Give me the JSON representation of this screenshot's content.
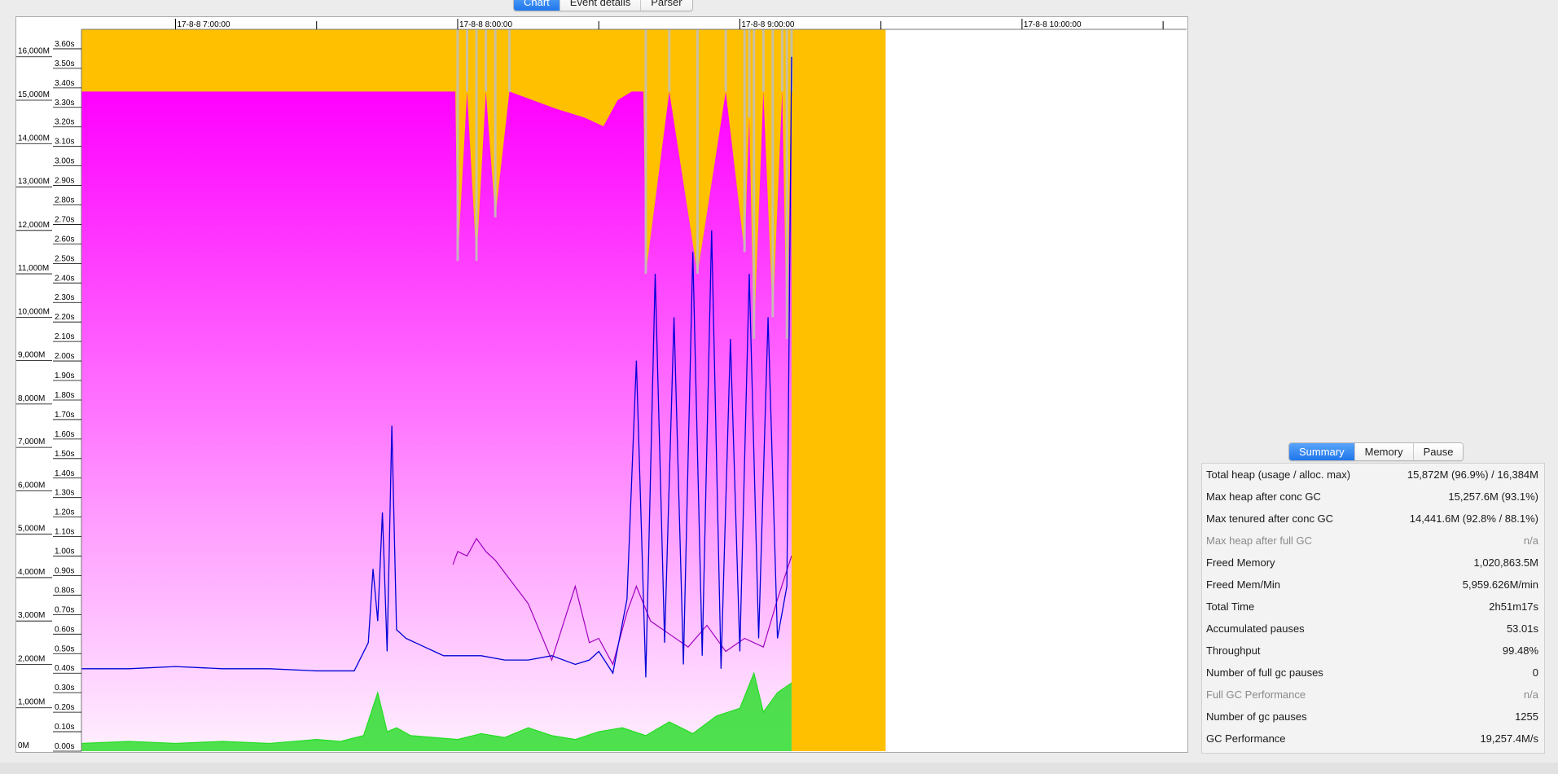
{
  "tabs": {
    "chart": "Chart",
    "event_details": "Event details",
    "parser": "Parser"
  },
  "summary_tabs": {
    "summary": "Summary",
    "memory": "Memory",
    "pause": "Pause"
  },
  "summary": [
    {
      "label": "Total heap (usage / alloc. max)",
      "value": "15,872M (96.9%) / 16,384M",
      "muted": false
    },
    {
      "label": "Max heap after conc GC",
      "value": "15,257.6M (93.1%)",
      "muted": false
    },
    {
      "label": "Max tenured after conc GC",
      "value": "14,441.6M (92.8% / 88.1%)",
      "muted": false
    },
    {
      "label": "Max heap after full GC",
      "value": "n/a",
      "muted": true
    },
    {
      "label": "Freed Memory",
      "value": "1,020,863.5M",
      "muted": false
    },
    {
      "label": "Freed Mem/Min",
      "value": "5,959.626M/min",
      "muted": false
    },
    {
      "label": "Total Time",
      "value": "2h51m17s",
      "muted": false
    },
    {
      "label": "Accumulated pauses",
      "value": "53.01s",
      "muted": false
    },
    {
      "label": "Throughput",
      "value": "99.48%",
      "muted": false
    },
    {
      "label": "Number of full gc pauses",
      "value": "0",
      "muted": false
    },
    {
      "label": "Full GC Performance",
      "value": "n/a",
      "muted": true
    },
    {
      "label": "Number of gc pauses",
      "value": "1255",
      "muted": false
    },
    {
      "label": "GC Performance",
      "value": "19,257.4M/s",
      "muted": false
    }
  ],
  "chart_data": {
    "type": "area",
    "x_ticks": [
      "17-8-8 7:00:00",
      "17-8-8 8:00:00",
      "17-8-8 9:00:00",
      "17-8-8 10:00:00"
    ],
    "x_range": [
      "17-8-8 6:40:00",
      "17-8-8 10:35:00"
    ],
    "data_end": "17-8-8 9:31:00",
    "memory_axis": {
      "unit": "M",
      "range": [
        0,
        16384
      ],
      "tick_labels": [
        "0M",
        "1,000M",
        "2,000M",
        "3,000M",
        "4,000M",
        "5,000M",
        "6,000M",
        "7,000M",
        "8,000M",
        "9,000M",
        "10,000M",
        "11,000M",
        "12,000M",
        "13,000M",
        "14,000M",
        "15,000M",
        "16,000M"
      ]
    },
    "pause_axis": {
      "unit": "s",
      "range": [
        0,
        3.7
      ],
      "tick_labels": [
        "0.00s",
        "0.10s",
        "0.20s",
        "0.30s",
        "0.40s",
        "0.50s",
        "0.60s",
        "0.70s",
        "0.80s",
        "0.90s",
        "1.00s",
        "1.10s",
        "1.20s",
        "1.30s",
        "1.40s",
        "1.50s",
        "1.60s",
        "1.70s",
        "1.80s",
        "1.90s",
        "2.00s",
        "2.10s",
        "2.20s",
        "2.30s",
        "2.40s",
        "2.50s",
        "2.60s",
        "2.70s",
        "2.80s",
        "2.90s",
        "3.00s",
        "3.10s",
        "3.20s",
        "3.30s",
        "3.40s",
        "3.50s",
        "3.60s"
      ]
    },
    "colors": {
      "total_heap": "#ffc000",
      "tenured_top": "#ff00ff",
      "tenured_bottom": "#fff0ff",
      "gc_band": "#c0c0c0",
      "used_heap": "#0000d8",
      "used_heap_after_gc": "#a000c0",
      "pauses": "#22dd22"
    },
    "series": [
      {
        "key": "tenured_heap",
        "x": [
          0,
          79.5,
          80,
          82,
          84,
          86,
          88,
          91,
          96,
          101,
          107,
          111,
          114,
          117,
          119.5,
          120,
          125,
          131,
          137,
          141,
          142,
          143,
          145,
          147,
          149,
          150,
          151
        ],
        "y": [
          15200,
          15200,
          11300,
          15200,
          11300,
          15200,
          12300,
          15200,
          15000,
          14800,
          14600,
          14400,
          15000,
          15200,
          15200,
          11000,
          15200,
          11000,
          15200,
          11500,
          14600,
          9500,
          15200,
          10000,
          15200,
          9500,
          15200
        ]
      },
      {
        "key": "used_heap",
        "x": [
          0,
          10,
          20,
          30,
          40,
          50,
          58,
          61,
          62,
          63,
          64,
          65,
          66,
          67,
          69,
          71,
          73,
          75,
          77,
          80,
          85,
          90,
          95,
          100,
          105,
          108,
          110,
          113,
          116,
          118,
          120,
          122,
          124,
          126,
          128,
          130,
          132,
          134,
          136,
          138,
          140,
          142,
          144,
          146,
          148,
          150,
          151
        ],
        "y": [
          1900,
          1900,
          1950,
          1900,
          1900,
          1850,
          1850,
          2500,
          4200,
          3000,
          5500,
          2300,
          7500,
          2800,
          2600,
          2500,
          2400,
          2300,
          2200,
          2200,
          2200,
          2100,
          2100,
          2200,
          2000,
          2100,
          2300,
          1800,
          3500,
          9000,
          1700,
          11000,
          2500,
          10000,
          2000,
          11500,
          2200,
          12000,
          1900,
          9500,
          2300,
          11000,
          2600,
          10000,
          2600,
          3800,
          16000
        ]
      },
      {
        "key": "used_heap_after_gc",
        "x": [
          79,
          80,
          82,
          84,
          86,
          88,
          95,
          100,
          105,
          108,
          110,
          113,
          116,
          118,
          121,
          125,
          129,
          133,
          137,
          141,
          145,
          148,
          151
        ],
        "y": [
          4300,
          4600,
          4500,
          4900,
          4600,
          4400,
          3400,
          2100,
          3800,
          2500,
          2600,
          2000,
          3200,
          3800,
          3000,
          2700,
          2400,
          2900,
          2300,
          2600,
          2400,
          3500,
          4500
        ]
      },
      {
        "key": "pauses",
        "x": [
          0,
          10,
          20,
          30,
          40,
          50,
          55,
          60,
          63,
          65,
          67,
          70,
          75,
          80,
          85,
          90,
          95,
          100,
          105,
          110,
          115,
          120,
          125,
          130,
          135,
          140,
          143,
          145,
          148,
          151
        ],
        "y": [
          0.04,
          0.05,
          0.04,
          0.05,
          0.04,
          0.06,
          0.05,
          0.08,
          0.3,
          0.1,
          0.12,
          0.08,
          0.07,
          0.06,
          0.09,
          0.07,
          0.12,
          0.08,
          0.06,
          0.1,
          0.12,
          0.08,
          0.15,
          0.09,
          0.18,
          0.22,
          0.4,
          0.2,
          0.3,
          0.35
        ]
      }
    ]
  }
}
